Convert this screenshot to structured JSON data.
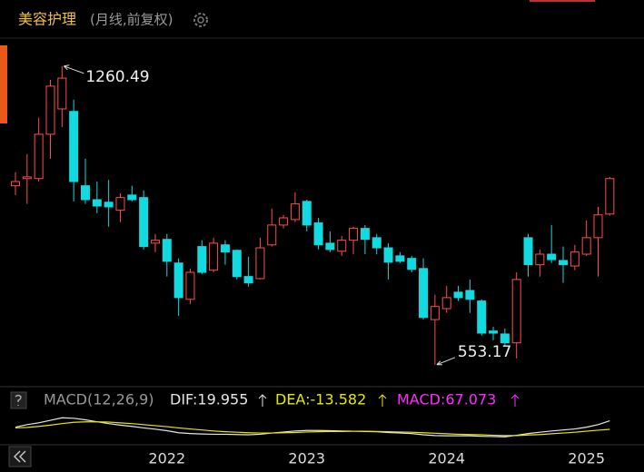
{
  "header": {
    "title": "美容护理",
    "subtitle": "(月线,前复权)"
  },
  "chart_data": [
    {
      "type": "candlestick",
      "categories": [
        null,
        null,
        null,
        null,
        null,
        null,
        null,
        null,
        null,
        null,
        null,
        null,
        null,
        "2022",
        null,
        null,
        null,
        null,
        null,
        null,
        null,
        null,
        null,
        null,
        null,
        "2023",
        null,
        null,
        null,
        null,
        null,
        null,
        null,
        null,
        null,
        null,
        null,
        "2024",
        null,
        null,
        null,
        null,
        null,
        null,
        null,
        null,
        null,
        null,
        null,
        "2025",
        null,
        null
      ],
      "open": [
        977,
        994,
        994,
        1099,
        1159,
        1153,
        977,
        944,
        938,
        919,
        955,
        949,
        841,
        850,
        794,
        708,
        833,
        777,
        837,
        824,
        762,
        757,
        837,
        884,
        897,
        940,
        889,
        841,
        822,
        848,
        876,
        854,
        830,
        811,
        805,
        781,
        660,
        686,
        725,
        729,
        704,
        633,
        626,
        605,
        854,
        790,
        815,
        800,
        787,
        815,
        854,
        910
      ],
      "high": [
        1009,
        1052,
        1138,
        1228,
        1260.49,
        1181,
        1041,
        987,
        991,
        959,
        977,
        966,
        863,
        863,
        805,
        781,
        848,
        854,
        848,
        826,
        809,
        854,
        923,
        908,
        962,
        944,
        901,
        869,
        858,
        880,
        884,
        863,
        841,
        820,
        811,
        805,
        719,
        740,
        740,
        755,
        708,
        643,
        639,
        772,
        863,
        826,
        884,
        833,
        837,
        895,
        927,
        998
      ],
      "low": [
        955,
        934,
        987,
        1041,
        1116,
        940,
        934,
        912,
        880,
        891,
        940,
        826,
        820,
        762,
        669,
        697,
        768,
        772,
        790,
        755,
        738,
        755,
        833,
        876,
        891,
        869,
        826,
        820,
        811,
        815,
        815,
        815,
        755,
        794,
        772,
        660,
        553.17,
        676,
        704,
        676,
        622,
        611,
        596,
        568,
        762,
        762,
        794,
        747,
        777,
        811,
        762,
        906
      ],
      "close": [
        987,
        998,
        1099,
        1213,
        1232,
        987,
        944,
        929,
        927,
        949,
        944,
        833,
        848,
        798,
        712,
        772,
        772,
        841,
        820,
        762,
        747,
        830,
        884,
        901,
        934,
        884,
        837,
        826,
        848,
        876,
        850,
        830,
        796,
        798,
        779,
        665,
        691,
        712,
        712,
        708,
        628,
        628,
        605,
        755,
        790,
        815,
        802,
        790,
        820,
        854,
        908,
        994
      ],
      "up_color": "#ff4d4d",
      "down_color": "#13d9e0",
      "ylim": [
        514,
        1331
      ]
    },
    {
      "type": "line",
      "title": "MACD(12,26,9)",
      "series": [
        {
          "name": "DIF:19.955",
          "color": "#e6e6e6",
          "values": [
            -5,
            5,
            12,
            22,
            32,
            30,
            24,
            16,
            9,
            3,
            -2,
            -8,
            -13,
            -19,
            -27,
            -30,
            -32,
            -33,
            -33,
            -34,
            -35,
            -33,
            -28,
            -24,
            -20,
            -18,
            -18,
            -19,
            -20,
            -21,
            -22,
            -23,
            -26,
            -28,
            -30,
            -35,
            -38,
            -39,
            -39,
            -39,
            -41,
            -42,
            -43,
            -37,
            -30,
            -25,
            -20,
            -16,
            -12,
            -5,
            5,
            19.955
          ]
        },
        {
          "name": "DEA:-13.582",
          "color": "#e8e800",
          "values": [
            -8,
            -6,
            -2,
            3,
            9,
            14,
            16,
            16,
            15,
            12,
            9,
            5,
            1,
            -3,
            -8,
            -12,
            -16,
            -20,
            -23,
            -25,
            -27,
            -28,
            -28,
            -27,
            -26,
            -24,
            -23,
            -22,
            -22,
            -21,
            -21,
            -22,
            -23,
            -24,
            -25,
            -27,
            -29,
            -31,
            -33,
            -34,
            -35,
            -37,
            -38,
            -38,
            -36,
            -34,
            -31,
            -28,
            -25,
            -21,
            -17,
            -13.582
          ]
        }
      ],
      "macd_label": "MACD:67.073",
      "macd_color": "#ff2bff",
      "ylim": [
        -60,
        40
      ]
    }
  ]
}
